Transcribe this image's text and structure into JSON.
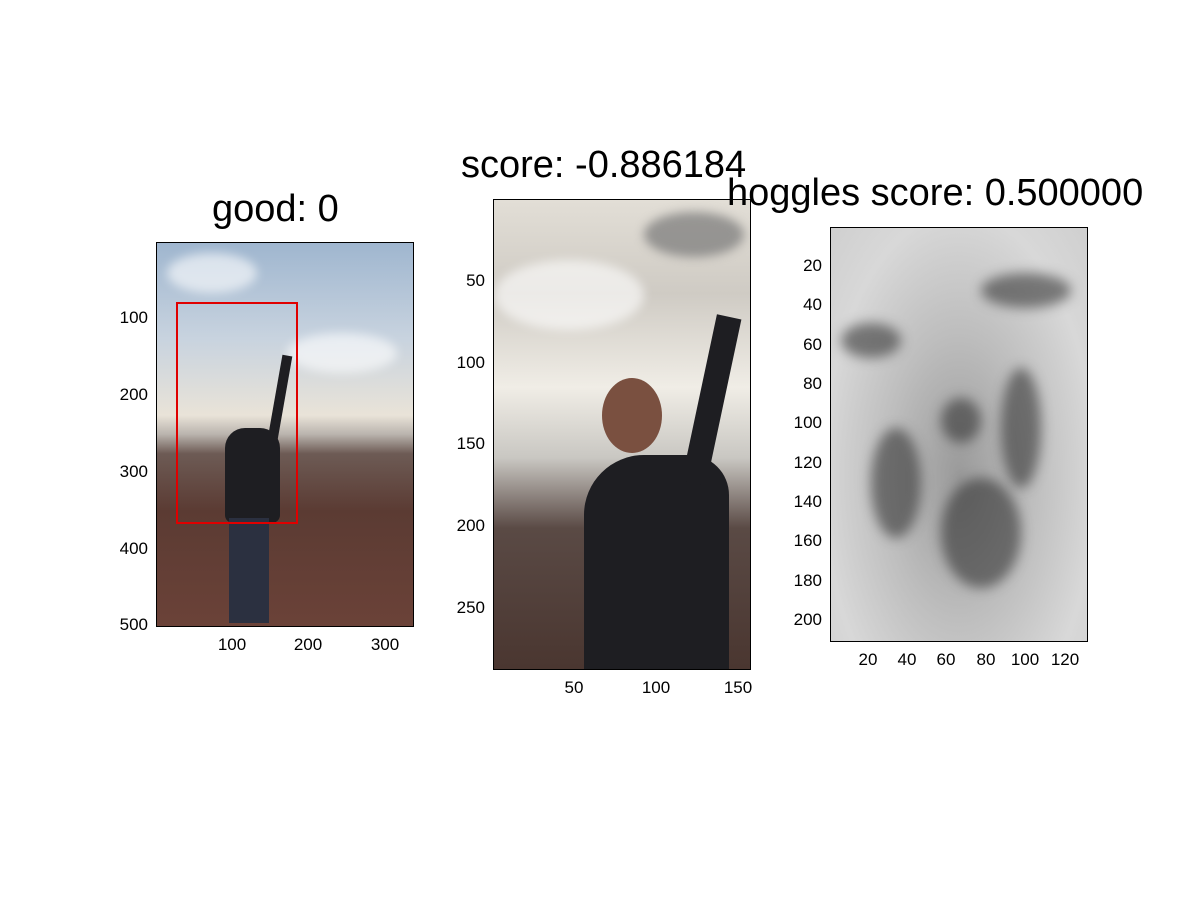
{
  "panels": [
    {
      "title": "good: 0",
      "y_ticks": [
        "100",
        "200",
        "300",
        "400",
        "500"
      ],
      "x_ticks": [
        "100",
        "200",
        "300"
      ]
    },
    {
      "title": "score: -0.886184",
      "y_ticks": [
        "50",
        "100",
        "150",
        "200",
        "250"
      ],
      "x_ticks": [
        "50",
        "100",
        "150"
      ]
    },
    {
      "title": "hoggles score: 0.500000",
      "y_ticks": [
        "20",
        "40",
        "60",
        "80",
        "100",
        "120",
        "140",
        "160",
        "180",
        "200"
      ],
      "x_ticks": [
        "20",
        "40",
        "60",
        "80",
        "100",
        "120"
      ]
    }
  ],
  "colors": {
    "bbox": "#e00000"
  }
}
